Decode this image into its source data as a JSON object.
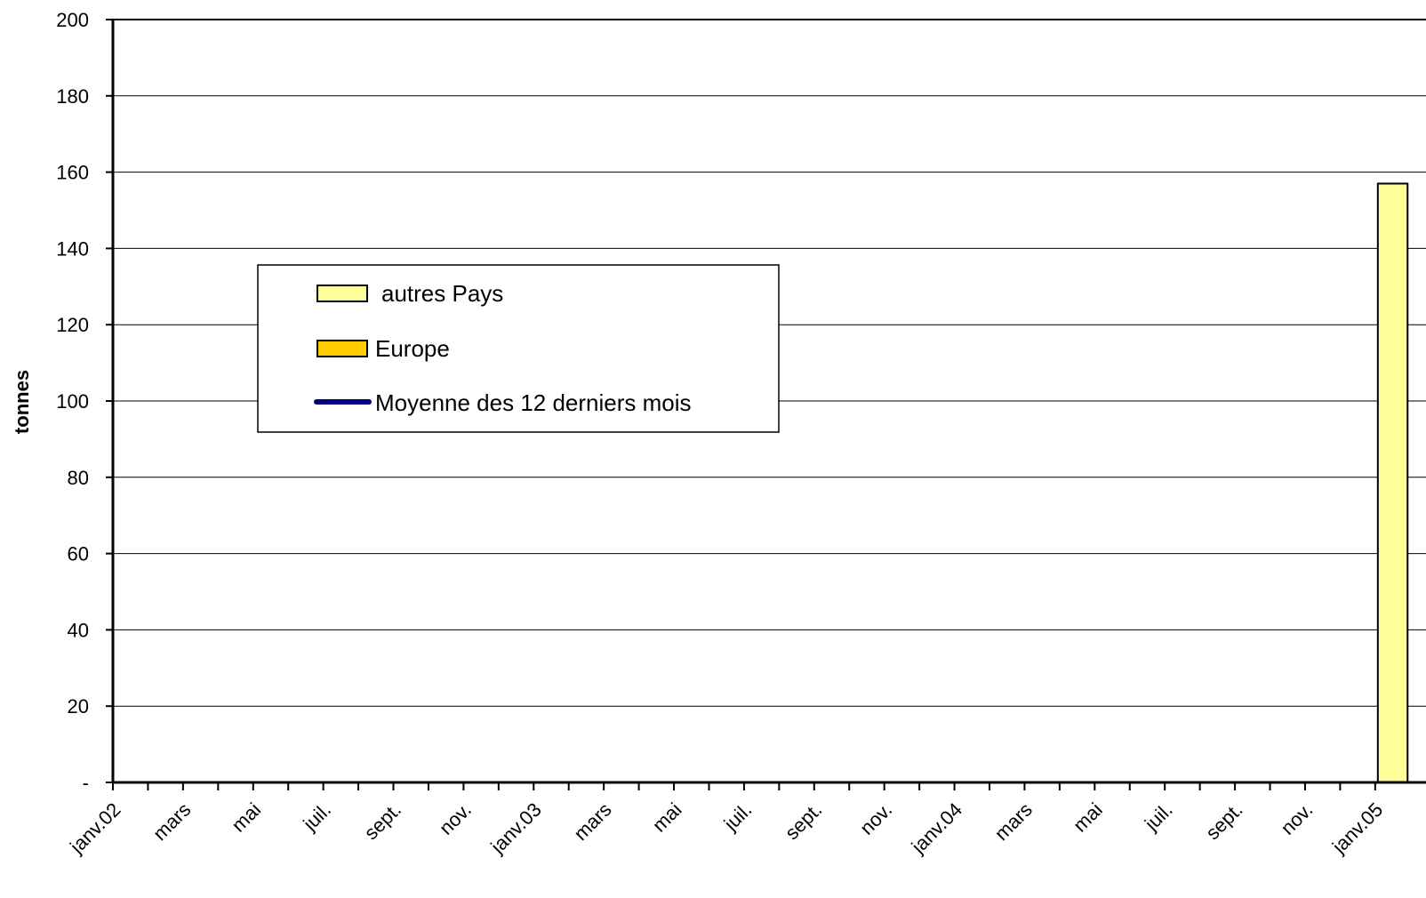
{
  "chart_data": {
    "type": "bar",
    "ylabel": "tonnes",
    "ylim": [
      0,
      200
    ],
    "yticks": [
      0,
      20,
      40,
      60,
      80,
      100,
      120,
      140,
      160,
      180,
      200
    ],
    "ytick_labels": [
      "-",
      "20",
      "40",
      "60",
      "80",
      "100",
      "120",
      "140",
      "160",
      "180",
      "200"
    ],
    "x_months": 37,
    "x_labels": [
      "janv.02",
      "mars",
      "mai",
      "juil.",
      "sept.",
      "nov.",
      "janv.03",
      "mars",
      "mai",
      "juil.",
      "sept.",
      "nov.",
      "janv.04",
      "mars",
      "mai",
      "juil.",
      "sept.",
      "nov.",
      "janv.05"
    ],
    "grid": true,
    "legend_position": "upper-left",
    "legend": [
      {
        "label": "autres Pays",
        "kind": "bar",
        "color": "#FFFF99"
      },
      {
        "label": "Europe",
        "kind": "bar",
        "color": "#FFCC00"
      },
      {
        "label": "Moyenne des 12 derniers mois",
        "kind": "line",
        "color": "#000080"
      }
    ],
    "series": [
      {
        "name": "autres Pays",
        "color": "#FFFF99",
        "points": [
          {
            "month_index": 36,
            "value": 157
          }
        ]
      },
      {
        "name": "Europe",
        "color": "#FFCC00",
        "points": []
      },
      {
        "name": "Moyenne des 12 derniers mois",
        "color": "#000080",
        "points": []
      }
    ]
  }
}
